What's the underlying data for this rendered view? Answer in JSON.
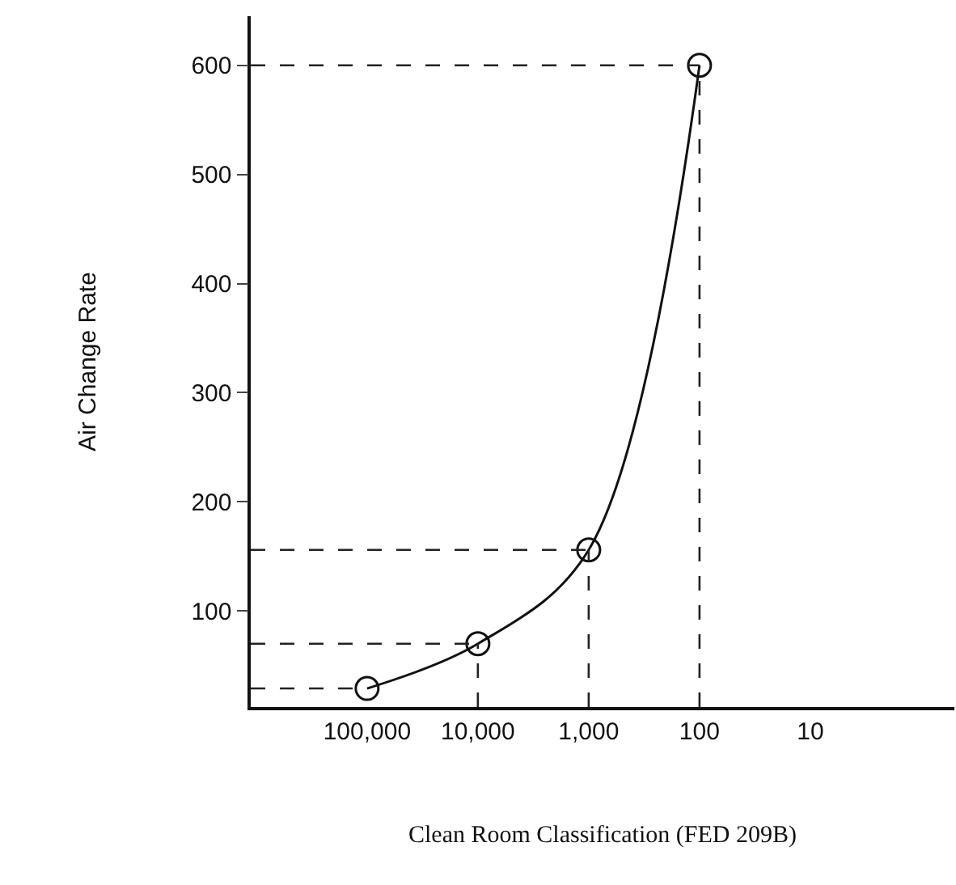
{
  "chart_data": {
    "type": "line",
    "xlabel": "Clean Room Classification (FED 209B)",
    "ylabel": "Air Change Rate",
    "categories": [
      "100,000",
      "10,000",
      "1,000",
      "100",
      "10"
    ],
    "series": [
      {
        "color": "#111111",
        "values": [
          29,
          70,
          156,
          600,
          null
        ]
      }
    ],
    "ylim": [
      12,
      645
    ],
    "yticks": [
      100,
      200,
      300,
      400,
      500,
      600
    ],
    "marker": "circle",
    "line_style": "solid",
    "ref_lines": [
      {
        "axis": "y",
        "value": 29,
        "line_style": "dashed"
      },
      {
        "axis": "y",
        "value": 70,
        "line_style": "dashed"
      },
      {
        "axis": "y",
        "value": 156,
        "line_style": "dashed"
      },
      {
        "axis": "y",
        "value": 600,
        "line_style": "dashed"
      },
      {
        "axis": "x",
        "value": "10,000",
        "line_style": "dashed"
      },
      {
        "axis": "x",
        "value": "1,000",
        "line_style": "dashed"
      },
      {
        "axis": "x",
        "value": "100",
        "line_style": "dashed"
      }
    ]
  }
}
